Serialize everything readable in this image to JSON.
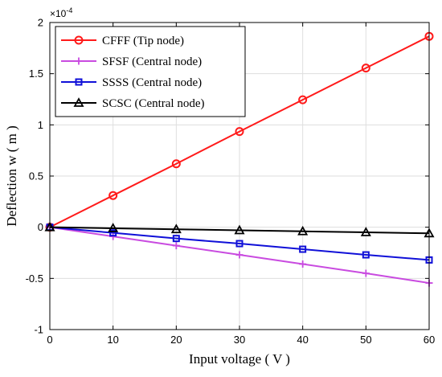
{
  "chart_data": {
    "type": "line",
    "xlabel": "Input voltage ( V )",
    "ylabel": "Deflection  w ( m )",
    "y_multiplier": "×10",
    "y_exponent": "-4",
    "xlim": [
      0,
      60
    ],
    "ylim": [
      -1,
      2
    ],
    "x_ticks": [
      "0",
      "10",
      "20",
      "30",
      "40",
      "50",
      "60"
    ],
    "y_ticks": [
      "-1",
      "-0.5",
      "0",
      "0.5",
      "1",
      "1.5",
      "2"
    ],
    "grid": true,
    "legend_position": "top-left",
    "x": [
      0,
      10,
      20,
      30,
      40,
      50,
      60
    ],
    "series": [
      {
        "name": "CFFF (Tip node)",
        "color": "#ff1a1a",
        "marker": "circle",
        "values": [
          0,
          0.31,
          0.62,
          0.935,
          1.245,
          1.555,
          1.865
        ]
      },
      {
        "name": "SFSF (Central node)",
        "color": "#c94be0",
        "marker": "plus",
        "values": [
          0,
          -0.09,
          -0.18,
          -0.27,
          -0.36,
          -0.45,
          -0.545
        ]
      },
      {
        "name": "SSSS (Central node)",
        "color": "#1010d8",
        "marker": "square",
        "values": [
          0,
          -0.055,
          -0.11,
          -0.16,
          -0.215,
          -0.27,
          -0.32
        ]
      },
      {
        "name": "SCSC (Central node)",
        "color": "#000000",
        "marker": "triangle",
        "values": [
          0,
          -0.01,
          -0.02,
          -0.03,
          -0.04,
          -0.05,
          -0.06
        ]
      }
    ]
  }
}
